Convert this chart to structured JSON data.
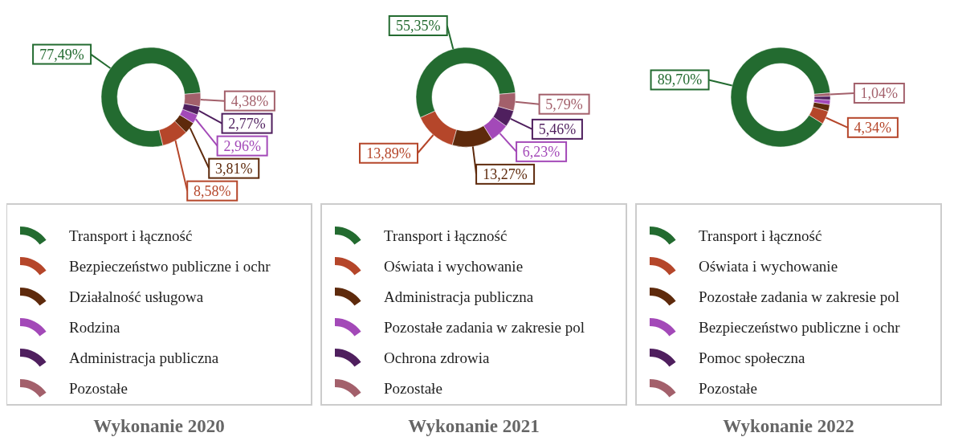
{
  "chart_data": [
    {
      "type": "donut",
      "title": "Wykonanie 2020",
      "categories": [
        "Transport i łączność",
        "Bezpieczeństwo publiczne i ochr",
        "Działalność usługowa",
        "Rodzina",
        "Administracja publiczna",
        "Pozostałe"
      ],
      "values": [
        77.49,
        8.58,
        3.81,
        2.96,
        2.77,
        4.38
      ],
      "colors": [
        "#236b30",
        "#b5462a",
        "#5e2a0c",
        "#a349b8",
        "#4f1f5e",
        "#a3606b"
      ],
      "value_labels": [
        "77,49%",
        "8,58%",
        "3,81%",
        "2,96%",
        "2,77%",
        "4,38%"
      ],
      "legend": "bottom"
    },
    {
      "type": "donut",
      "title": "Wykonanie 2021",
      "categories": [
        "Transport i łączność",
        "Oświata i wychowanie",
        "Administracja publiczna",
        "Pozostałe zadania w zakresie pol",
        "Ochrona zdrowia",
        "Pozostałe"
      ],
      "values": [
        55.35,
        13.89,
        13.27,
        6.23,
        5.46,
        5.79
      ],
      "colors": [
        "#236b30",
        "#b5462a",
        "#5e2a0c",
        "#a349b8",
        "#4f1f5e",
        "#a3606b"
      ],
      "value_labels": [
        "55,35%",
        "13,89%",
        "13,27%",
        "6,23%",
        "5,46%",
        "5,79%"
      ],
      "legend": "bottom"
    },
    {
      "type": "donut",
      "title": "Wykonanie 2022",
      "categories": [
        "Transport i łączność",
        "Oświata i wychowanie",
        "Pozostałe zadania w zakresie pol",
        "Bezpieczeństwo publiczne i ochr",
        "Pomoc społeczna",
        "Pozostałe"
      ],
      "values": [
        89.7,
        4.34,
        2.2,
        1.5,
        1.22,
        1.04
      ],
      "colors": [
        "#236b30",
        "#b5462a",
        "#5e2a0c",
        "#a349b8",
        "#4f1f5e",
        "#a3606b"
      ],
      "value_labels": [
        "89,70%",
        "4,34%",
        null,
        null,
        null,
        "1,04%"
      ],
      "legend": "bottom"
    }
  ]
}
